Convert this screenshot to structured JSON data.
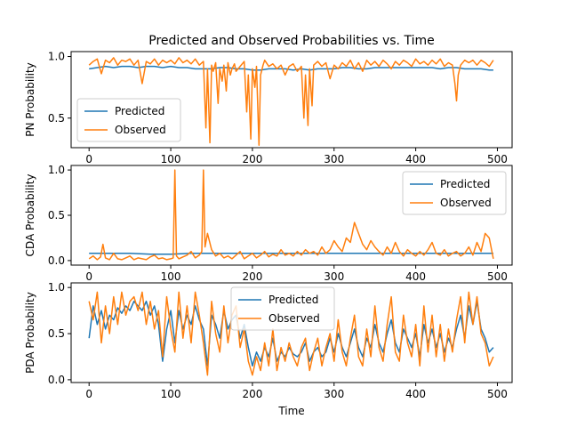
{
  "title": "Predicted and Observed Probabilities vs. Time",
  "colors": {
    "predicted": "#1f77b4",
    "observed": "#ff7f0e"
  },
  "chart_data": [
    {
      "type": "line",
      "title": "Predicted and Observed Probabilities vs. Time",
      "xlabel": "",
      "ylabel": "PN Probability",
      "xlim": [
        -22,
        518
      ],
      "ylim": [
        0.26,
        1.04
      ],
      "xticks": [
        0,
        100,
        200,
        300,
        400,
        500
      ],
      "yticks": [
        0.5,
        1.0
      ],
      "ytick_labels": [
        "0.5",
        "1.0"
      ],
      "legend": "lower-left",
      "grid": false,
      "series": [
        {
          "name": "Predicted",
          "color": "#1f77b4",
          "x": [
            0,
            10,
            20,
            30,
            40,
            50,
            60,
            70,
            80,
            90,
            100,
            110,
            120,
            130,
            140,
            150,
            160,
            170,
            180,
            190,
            200,
            210,
            220,
            230,
            240,
            250,
            260,
            270,
            280,
            290,
            300,
            310,
            320,
            330,
            340,
            350,
            360,
            370,
            380,
            390,
            400,
            410,
            420,
            430,
            440,
            450,
            460,
            470,
            480,
            490,
            495
          ],
          "y": [
            0.9,
            0.91,
            0.92,
            0.91,
            0.92,
            0.92,
            0.91,
            0.92,
            0.92,
            0.91,
            0.92,
            0.91,
            0.91,
            0.9,
            0.9,
            0.9,
            0.91,
            0.91,
            0.9,
            0.9,
            0.89,
            0.89,
            0.9,
            0.9,
            0.9,
            0.89,
            0.9,
            0.89,
            0.9,
            0.9,
            0.9,
            0.91,
            0.91,
            0.9,
            0.9,
            0.91,
            0.91,
            0.91,
            0.91,
            0.91,
            0.91,
            0.91,
            0.91,
            0.9,
            0.91,
            0.91,
            0.9,
            0.9,
            0.9,
            0.89,
            0.89
          ]
        },
        {
          "name": "Observed",
          "color": "#ff7f0e",
          "x": [
            0,
            5,
            10,
            15,
            20,
            25,
            30,
            35,
            40,
            45,
            50,
            55,
            60,
            65,
            70,
            75,
            80,
            85,
            90,
            95,
            100,
            105,
            110,
            115,
            120,
            125,
            130,
            135,
            140,
            143,
            145,
            148,
            150,
            152,
            155,
            158,
            160,
            163,
            165,
            168,
            170,
            173,
            175,
            178,
            180,
            185,
            190,
            193,
            195,
            198,
            200,
            203,
            205,
            208,
            210,
            213,
            215,
            220,
            225,
            230,
            235,
            240,
            245,
            250,
            255,
            260,
            263,
            265,
            268,
            270,
            273,
            275,
            280,
            285,
            290,
            295,
            300,
            305,
            310,
            315,
            320,
            325,
            330,
            335,
            340,
            345,
            350,
            355,
            360,
            365,
            370,
            375,
            380,
            385,
            390,
            395,
            400,
            405,
            410,
            415,
            420,
            425,
            430,
            435,
            440,
            445,
            448,
            450,
            452,
            455,
            460,
            465,
            470,
            475,
            480,
            485,
            490,
            495
          ],
          "y": [
            0.93,
            0.96,
            0.98,
            0.86,
            0.97,
            0.95,
            0.99,
            0.93,
            0.97,
            0.96,
            0.98,
            0.93,
            0.97,
            0.78,
            0.96,
            0.94,
            0.98,
            0.93,
            0.97,
            0.95,
            0.97,
            0.94,
            0.99,
            0.95,
            0.97,
            0.94,
            0.98,
            0.93,
            0.96,
            0.42,
            0.9,
            0.3,
            0.93,
            0.88,
            0.95,
            0.62,
            0.9,
            0.8,
            0.93,
            0.72,
            0.95,
            0.85,
            0.9,
            0.94,
            0.88,
            0.92,
            0.96,
            0.55,
            0.85,
            0.33,
            0.9,
            0.75,
            0.92,
            0.28,
            0.85,
            0.93,
            0.97,
            0.92,
            0.94,
            0.9,
            0.93,
            0.85,
            0.92,
            0.94,
            0.88,
            0.92,
            0.5,
            0.85,
            0.44,
            0.9,
            0.6,
            0.93,
            0.96,
            0.92,
            0.95,
            0.82,
            0.93,
            0.9,
            0.95,
            0.92,
            0.97,
            0.9,
            0.95,
            0.88,
            0.97,
            0.93,
            0.96,
            0.92,
            0.97,
            0.94,
            0.9,
            0.96,
            0.93,
            0.97,
            0.95,
            0.92,
            0.98,
            0.94,
            0.96,
            0.93,
            0.97,
            0.94,
            0.98,
            0.92,
            0.95,
            0.93,
            0.78,
            0.64,
            0.85,
            0.93,
            0.97,
            0.95,
            0.97,
            0.93,
            0.97,
            0.95,
            0.92,
            0.97
          ]
        }
      ]
    },
    {
      "type": "line",
      "title": "",
      "xlabel": "",
      "ylabel": "CDA Probability",
      "xlim": [
        -22,
        518
      ],
      "ylim": [
        -0.05,
        1.05
      ],
      "xticks": [
        0,
        100,
        200,
        300,
        400,
        500
      ],
      "yticks": [
        0.0,
        0.5,
        1.0
      ],
      "ytick_labels": [
        "0.0",
        "0.5",
        "1.0"
      ],
      "legend": "upper-right",
      "grid": false,
      "series": [
        {
          "name": "Predicted",
          "color": "#1f77b4",
          "x": [
            0,
            25,
            50,
            75,
            100,
            125,
            150,
            175,
            200,
            225,
            250,
            275,
            300,
            325,
            350,
            375,
            400,
            425,
            450,
            475,
            495
          ],
          "y": [
            0.08,
            0.08,
            0.08,
            0.07,
            0.07,
            0.08,
            0.08,
            0.08,
            0.08,
            0.08,
            0.08,
            0.08,
            0.08,
            0.08,
            0.08,
            0.08,
            0.08,
            0.08,
            0.08,
            0.08,
            0.08
          ]
        },
        {
          "name": "Observed",
          "color": "#ff7f0e",
          "x": [
            0,
            5,
            10,
            14,
            17,
            20,
            25,
            30,
            35,
            40,
            45,
            50,
            55,
            60,
            65,
            70,
            75,
            80,
            85,
            90,
            95,
            100,
            103,
            105,
            107,
            110,
            115,
            120,
            125,
            130,
            135,
            138,
            140,
            142,
            145,
            150,
            155,
            160,
            165,
            170,
            175,
            180,
            185,
            190,
            195,
            200,
            205,
            210,
            215,
            220,
            225,
            230,
            235,
            240,
            245,
            250,
            255,
            260,
            265,
            270,
            275,
            280,
            285,
            290,
            295,
            300,
            305,
            310,
            315,
            320,
            325,
            330,
            335,
            340,
            345,
            350,
            355,
            360,
            365,
            370,
            375,
            380,
            385,
            390,
            395,
            400,
            405,
            410,
            415,
            420,
            425,
            430,
            435,
            440,
            445,
            450,
            455,
            460,
            465,
            470,
            475,
            480,
            485,
            490,
            495
          ],
          "y": [
            0.02,
            0.05,
            0.01,
            0.04,
            0.18,
            0.03,
            0.01,
            0.08,
            0.02,
            0.01,
            0.03,
            0.05,
            0.01,
            0.03,
            0.02,
            0.01,
            0.04,
            0.06,
            0.02,
            0.03,
            0.01,
            0.02,
            0.03,
            1.0,
            0.05,
            0.02,
            0.04,
            0.06,
            0.1,
            0.03,
            0.06,
            0.1,
            1.0,
            0.15,
            0.3,
            0.12,
            0.05,
            0.08,
            0.03,
            0.05,
            0.02,
            0.06,
            0.1,
            0.02,
            0.05,
            0.08,
            0.03,
            0.06,
            0.1,
            0.04,
            0.07,
            0.05,
            0.12,
            0.06,
            0.08,
            0.05,
            0.1,
            0.06,
            0.12,
            0.08,
            0.1,
            0.06,
            0.15,
            0.08,
            0.12,
            0.22,
            0.15,
            0.1,
            0.25,
            0.2,
            0.42,
            0.3,
            0.18,
            0.12,
            0.22,
            0.15,
            0.1,
            0.06,
            0.15,
            0.08,
            0.2,
            0.1,
            0.05,
            0.12,
            0.08,
            0.05,
            0.1,
            0.06,
            0.12,
            0.2,
            0.08,
            0.06,
            0.12,
            0.05,
            0.08,
            0.1,
            0.05,
            0.08,
            0.15,
            0.06,
            0.2,
            0.1,
            0.3,
            0.25,
            0.02
          ]
        }
      ]
    },
    {
      "type": "line",
      "title": "",
      "xlabel": "Time",
      "ylabel": "PDA Probability",
      "xlim": [
        -22,
        518
      ],
      "ylim": [
        -0.03,
        1.05
      ],
      "xticks": [
        0,
        100,
        200,
        300,
        400,
        500
      ],
      "yticks": [
        0.0,
        0.5,
        1.0
      ],
      "ytick_labels": [
        "0.0",
        "0.5",
        "1.0"
      ],
      "legend": "upper-center",
      "grid": false,
      "series": [
        {
          "name": "Predicted",
          "color": "#1f77b4",
          "x": [
            0,
            5,
            10,
            15,
            20,
            25,
            30,
            35,
            40,
            45,
            50,
            55,
            60,
            65,
            70,
            75,
            80,
            85,
            90,
            95,
            100,
            105,
            110,
            115,
            120,
            125,
            130,
            135,
            140,
            145,
            150,
            155,
            160,
            165,
            170,
            175,
            180,
            185,
            190,
            195,
            200,
            205,
            210,
            215,
            220,
            225,
            230,
            235,
            240,
            245,
            250,
            255,
            260,
            265,
            270,
            275,
            280,
            285,
            290,
            295,
            300,
            305,
            310,
            315,
            320,
            325,
            330,
            335,
            340,
            345,
            350,
            355,
            360,
            365,
            370,
            375,
            380,
            385,
            390,
            395,
            400,
            405,
            410,
            415,
            420,
            425,
            430,
            435,
            440,
            445,
            450,
            455,
            460,
            465,
            470,
            475,
            480,
            485,
            490,
            495
          ],
          "y": [
            0.45,
            0.8,
            0.6,
            0.75,
            0.55,
            0.7,
            0.65,
            0.78,
            0.72,
            0.8,
            0.75,
            0.85,
            0.8,
            0.75,
            0.85,
            0.7,
            0.8,
            0.6,
            0.2,
            0.55,
            0.75,
            0.4,
            0.75,
            0.55,
            0.7,
            0.6,
            0.8,
            0.65,
            0.55,
            0.15,
            0.7,
            0.6,
            0.45,
            0.75,
            0.55,
            0.65,
            0.7,
            0.45,
            0.6,
            0.35,
            0.15,
            0.3,
            0.2,
            0.35,
            0.25,
            0.45,
            0.2,
            0.3,
            0.25,
            0.35,
            0.28,
            0.25,
            0.3,
            0.4,
            0.2,
            0.3,
            0.35,
            0.25,
            0.3,
            0.45,
            0.3,
            0.5,
            0.35,
            0.25,
            0.4,
            0.55,
            0.35,
            0.25,
            0.45,
            0.35,
            0.6,
            0.4,
            0.3,
            0.5,
            0.65,
            0.4,
            0.3,
            0.55,
            0.45,
            0.35,
            0.5,
            0.25,
            0.6,
            0.4,
            0.55,
            0.35,
            0.5,
            0.3,
            0.45,
            0.35,
            0.55,
            0.7,
            0.45,
            0.8,
            0.6,
            0.85,
            0.55,
            0.45,
            0.3,
            0.35
          ]
        },
        {
          "name": "Observed",
          "color": "#ff7f0e",
          "x": [
            0,
            5,
            10,
            15,
            20,
            25,
            30,
            35,
            40,
            45,
            50,
            55,
            60,
            65,
            70,
            75,
            80,
            85,
            90,
            95,
            100,
            105,
            110,
            115,
            120,
            125,
            130,
            135,
            140,
            145,
            150,
            155,
            160,
            165,
            170,
            175,
            180,
            185,
            190,
            195,
            200,
            205,
            210,
            215,
            220,
            225,
            230,
            235,
            240,
            245,
            250,
            255,
            260,
            265,
            270,
            275,
            280,
            285,
            290,
            295,
            300,
            305,
            310,
            315,
            320,
            325,
            330,
            335,
            340,
            345,
            350,
            355,
            360,
            365,
            370,
            375,
            380,
            385,
            390,
            395,
            400,
            405,
            410,
            415,
            420,
            425,
            430,
            435,
            440,
            445,
            450,
            455,
            460,
            465,
            470,
            475,
            480,
            485,
            490,
            495
          ],
          "y": [
            0.85,
            0.65,
            0.95,
            0.4,
            0.8,
            0.5,
            0.9,
            0.6,
            0.95,
            0.7,
            0.85,
            0.9,
            0.75,
            0.95,
            0.6,
            0.85,
            0.55,
            0.75,
            0.25,
            0.9,
            0.55,
            0.3,
            0.95,
            0.45,
            0.8,
            0.4,
            0.95,
            0.7,
            0.4,
            0.05,
            0.85,
            0.5,
            0.3,
            0.8,
            0.4,
            0.7,
            0.8,
            0.35,
            0.55,
            0.2,
            0.05,
            0.25,
            0.1,
            0.4,
            0.15,
            0.55,
            0.1,
            0.35,
            0.2,
            0.4,
            0.25,
            0.15,
            0.35,
            0.45,
            0.1,
            0.3,
            0.45,
            0.15,
            0.35,
            0.5,
            0.2,
            0.65,
            0.3,
            0.15,
            0.45,
            0.7,
            0.25,
            0.15,
            0.55,
            0.25,
            0.8,
            0.35,
            0.2,
            0.6,
            0.9,
            0.3,
            0.2,
            0.7,
            0.4,
            0.25,
            0.6,
            0.15,
            0.8,
            0.3,
            0.7,
            0.25,
            0.6,
            0.2,
            0.55,
            0.3,
            0.65,
            0.9,
            0.4,
            0.95,
            0.6,
            0.9,
            0.5,
            0.4,
            0.15,
            0.25
          ]
        }
      ]
    }
  ]
}
